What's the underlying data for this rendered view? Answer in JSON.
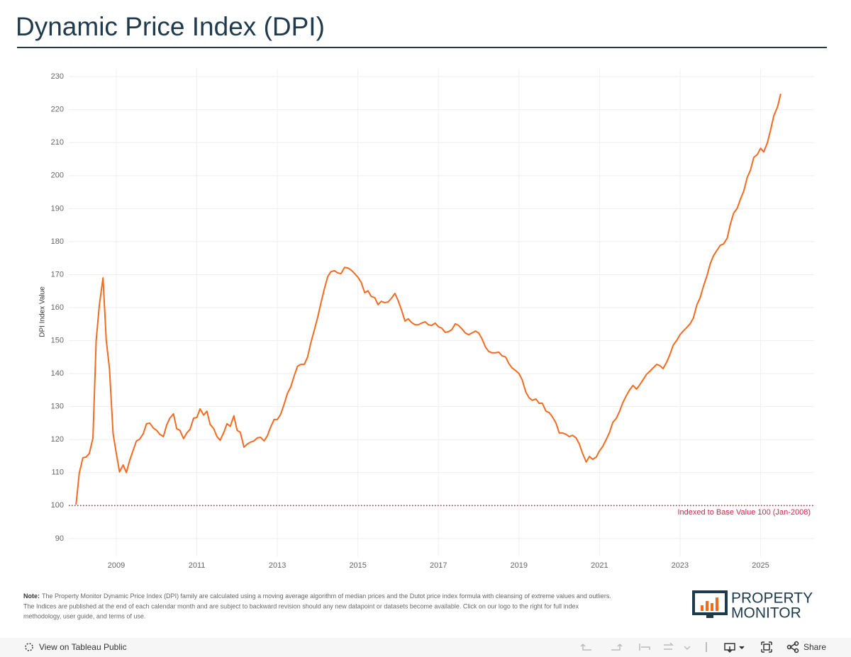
{
  "chart_data": {
    "type": "line",
    "title": "Dynamic Price Index (DPI)",
    "y_label": "DPI Index Value",
    "color": "#f26b21",
    "grid": true,
    "xlim": [
      2007.82,
      2026.33
    ],
    "xticks": [
      2009,
      2011,
      2013,
      2015,
      2017,
      2019,
      2021,
      2023,
      2025
    ],
    "ylim": [
      84.6,
      232.4
    ],
    "yticks": [
      90,
      100,
      110,
      120,
      130,
      140,
      150,
      160,
      170,
      180,
      190,
      200,
      210,
      220,
      230
    ],
    "reference_line": {
      "value": 100,
      "label": "Indexed to Base Value 100 (Jan-2008)",
      "color": "#d6224b"
    },
    "x": [
      2008.0,
      2008.08,
      2008.17,
      2008.25,
      2008.33,
      2008.42,
      2008.5,
      2008.58,
      2008.67,
      2008.75,
      2008.83,
      2008.92,
      2009.0,
      2009.08,
      2009.17,
      2009.25,
      2009.33,
      2009.42,
      2009.5,
      2009.58,
      2009.67,
      2009.75,
      2009.83,
      2009.92,
      2010.0,
      2010.08,
      2010.17,
      2010.25,
      2010.33,
      2010.42,
      2010.5,
      2010.58,
      2010.67,
      2010.75,
      2010.83,
      2010.92,
      2011.0,
      2011.08,
      2011.17,
      2011.25,
      2011.33,
      2011.42,
      2011.5,
      2011.58,
      2011.67,
      2011.75,
      2011.83,
      2011.92,
      2012.0,
      2012.08,
      2012.17,
      2012.25,
      2012.33,
      2012.42,
      2012.5,
      2012.58,
      2012.67,
      2012.75,
      2012.83,
      2012.92,
      2013.0,
      2013.08,
      2013.17,
      2013.25,
      2013.33,
      2013.42,
      2013.5,
      2013.58,
      2013.67,
      2013.75,
      2013.83,
      2013.92,
      2014.0,
      2014.08,
      2014.17,
      2014.25,
      2014.33,
      2014.42,
      2014.5,
      2014.58,
      2014.67,
      2014.75,
      2014.83,
      2014.92,
      2015.0,
      2015.08,
      2015.17,
      2015.25,
      2015.33,
      2015.42,
      2015.5,
      2015.58,
      2015.67,
      2015.75,
      2015.83,
      2015.92,
      2016.0,
      2016.08,
      2016.17,
      2016.25,
      2016.33,
      2016.42,
      2016.5,
      2016.58,
      2016.67,
      2016.75,
      2016.83,
      2016.92,
      2017.0,
      2017.08,
      2017.17,
      2017.25,
      2017.33,
      2017.42,
      2017.5,
      2017.58,
      2017.67,
      2017.75,
      2017.83,
      2017.92,
      2018.0,
      2018.08,
      2018.17,
      2018.25,
      2018.33,
      2018.42,
      2018.5,
      2018.58,
      2018.67,
      2018.75,
      2018.83,
      2018.92,
      2019.0,
      2019.08,
      2019.17,
      2019.25,
      2019.33,
      2019.42,
      2019.5,
      2019.58,
      2019.67,
      2019.75,
      2019.83,
      2019.92,
      2020.0,
      2020.08,
      2020.17,
      2020.25,
      2020.33,
      2020.42,
      2020.5,
      2020.58,
      2020.67,
      2020.75,
      2020.83,
      2020.92,
      2021.0,
      2021.08,
      2021.17,
      2021.25,
      2021.33,
      2021.42,
      2021.5,
      2021.58,
      2021.67,
      2021.75,
      2021.83,
      2021.92,
      2022.0,
      2022.08,
      2022.17,
      2022.25,
      2022.33,
      2022.42,
      2022.5,
      2022.58,
      2022.67,
      2022.75,
      2022.83,
      2022.92,
      2023.0,
      2023.08,
      2023.17,
      2023.25,
      2023.33,
      2023.42,
      2023.5,
      2023.58,
      2023.67,
      2023.75,
      2023.83,
      2023.92,
      2024.0,
      2024.08,
      2024.17,
      2024.25,
      2024.33,
      2024.42,
      2024.5,
      2024.58,
      2024.67,
      2024.75,
      2024.83,
      2024.92,
      2025.0,
      2025.08,
      2025.17,
      2025.25,
      2025.33,
      2025.42,
      2025.5
    ],
    "values": [
      100.3,
      109.8,
      114.5,
      114.7,
      115.8,
      120.5,
      150.1,
      160.9,
      169.0,
      150.1,
      141.5,
      121.8,
      115.8,
      110.2,
      112.3,
      110.0,
      113.6,
      116.8,
      119.6,
      120.1,
      121.8,
      124.8,
      125.0,
      123.5,
      122.8,
      121.6,
      120.9,
      124.4,
      126.5,
      127.8,
      123.3,
      122.8,
      120.3,
      122.0,
      123.1,
      126.5,
      126.7,
      129.3,
      127.4,
      128.6,
      124.6,
      123.3,
      120.9,
      119.8,
      122.2,
      124.8,
      124.0,
      127.2,
      122.8,
      122.2,
      117.7,
      118.6,
      119.2,
      119.6,
      120.5,
      120.7,
      119.6,
      121.1,
      123.7,
      126.1,
      126.1,
      127.6,
      130.8,
      134.0,
      135.9,
      139.4,
      142.2,
      142.8,
      142.8,
      145.0,
      149.3,
      153.3,
      157.0,
      161.3,
      165.8,
      169.4,
      170.9,
      171.2,
      170.5,
      170.3,
      172.2,
      172.0,
      171.4,
      170.3,
      169.2,
      167.7,
      164.5,
      165.1,
      163.4,
      163.0,
      160.9,
      161.9,
      161.5,
      161.7,
      162.8,
      164.3,
      162.1,
      159.4,
      155.9,
      156.6,
      155.5,
      154.8,
      154.8,
      155.3,
      155.7,
      154.8,
      154.6,
      155.3,
      154.2,
      153.8,
      152.5,
      152.7,
      153.3,
      155.1,
      154.6,
      153.6,
      152.3,
      151.8,
      152.3,
      152.9,
      152.3,
      150.6,
      148.0,
      146.7,
      146.3,
      146.3,
      146.5,
      145.4,
      145.0,
      143.0,
      141.7,
      140.9,
      140.0,
      138.1,
      134.4,
      132.7,
      131.9,
      132.3,
      131.0,
      131.0,
      128.6,
      128.2,
      126.9,
      125.0,
      122.0,
      122.0,
      121.6,
      120.9,
      121.3,
      120.5,
      118.6,
      115.8,
      113.2,
      114.9,
      114.0,
      114.7,
      116.6,
      117.9,
      120.1,
      122.2,
      125.2,
      126.5,
      128.6,
      131.2,
      133.4,
      135.1,
      136.4,
      135.3,
      136.6,
      138.1,
      139.8,
      140.7,
      141.7,
      142.8,
      142.4,
      141.5,
      143.5,
      145.8,
      148.6,
      150.1,
      151.8,
      152.9,
      154.0,
      155.1,
      156.8,
      160.9,
      163.0,
      166.4,
      169.7,
      173.3,
      175.7,
      177.4,
      178.9,
      179.3,
      181.0,
      185.3,
      188.6,
      190.1,
      192.9,
      195.2,
      199.5,
      201.7,
      205.5,
      206.4,
      208.3,
      207.2,
      210.0,
      213.9,
      218.2,
      220.8,
      224.8
    ]
  },
  "note": {
    "label": "Note:",
    "lines": [
      "The Property Monitor Dynamic Price Index (DPI) family are calculated using a moving average algorithm of median prices and the Dutot price index formula with cleansing of extreme values and outliers.",
      "The Indices are published at the end of each calendar month and are subject to backward revision should any new datapoint or datasets become available.  Click on our logo to the right for full index",
      "methodology, user guide, and terms of use."
    ]
  },
  "logo": {
    "lines": [
      "PROPERTY",
      "MONITOR"
    ]
  },
  "toolbar": {
    "view": "View on Tableau Public",
    "share": "Share"
  }
}
